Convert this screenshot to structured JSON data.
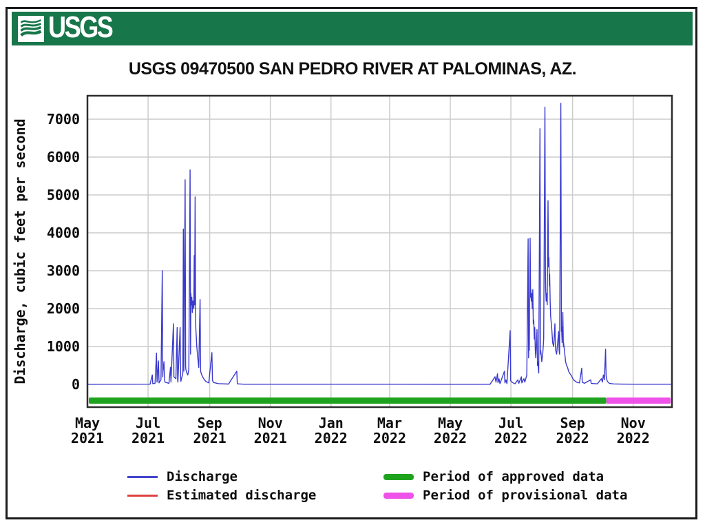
{
  "banner": {
    "logo_text": "USGS",
    "logo_icon": "usgs-wave-icon"
  },
  "title": "USGS 09470500 SAN PEDRO RIVER AT PALOMINAS, AZ.",
  "chart_data": {
    "type": "line",
    "title": "USGS 09470500 SAN PEDRO RIVER AT PALOMINAS, AZ.",
    "xlabel": "",
    "ylabel": "Discharge, cubic feet per second",
    "ylim": [
      0,
      7600
    ],
    "y_ticks": [
      0,
      1000,
      2000,
      3000,
      4000,
      5000,
      6000,
      7000
    ],
    "grid": true,
    "legend_position": "bottom",
    "x_domain": {
      "start": "2021-05-01",
      "end": "2022-12-10"
    },
    "x_ticks": [
      {
        "month": "May",
        "year": "2021",
        "date": "2021-05-01"
      },
      {
        "month": "Jul",
        "year": "2021",
        "date": "2021-07-01"
      },
      {
        "month": "Sep",
        "year": "2021",
        "date": "2021-09-01"
      },
      {
        "month": "Nov",
        "year": "2021",
        "date": "2021-11-01"
      },
      {
        "month": "Jan",
        "year": "2022",
        "date": "2022-01-01"
      },
      {
        "month": "Mar",
        "year": "2022",
        "date": "2022-03-01"
      },
      {
        "month": "May",
        "year": "2022",
        "date": "2022-05-01"
      },
      {
        "month": "Jul",
        "year": "2022",
        "date": "2022-07-01"
      },
      {
        "month": "Sep",
        "year": "2022",
        "date": "2022-09-01"
      },
      {
        "month": "Nov",
        "year": "2022",
        "date": "2022-11-01"
      }
    ],
    "series": [
      {
        "name": "Discharge",
        "color": "#3a3acd",
        "points": [
          [
            "2021-05-01",
            4
          ],
          [
            "2021-07-03",
            5
          ],
          [
            "2021-07-05T06:00",
            250
          ],
          [
            "2021-07-05T18:00",
            20
          ],
          [
            "2021-07-08",
            30
          ],
          [
            "2021-07-09T12:00",
            830
          ],
          [
            "2021-07-10",
            60
          ],
          [
            "2021-07-11T12:00",
            620
          ],
          [
            "2021-07-12",
            40
          ],
          [
            "2021-07-14",
            120
          ],
          [
            "2021-07-15T06:00",
            3000
          ],
          [
            "2021-07-15T18:00",
            200
          ],
          [
            "2021-07-16",
            350
          ],
          [
            "2021-07-17",
            600
          ],
          [
            "2021-07-17T12:00",
            150
          ],
          [
            "2021-07-18",
            60
          ],
          [
            "2021-07-22",
            30
          ],
          [
            "2021-07-23T12:00",
            450
          ],
          [
            "2021-07-24",
            60
          ],
          [
            "2021-07-26T12:00",
            1600
          ],
          [
            "2021-07-27",
            200
          ],
          [
            "2021-07-29",
            150
          ],
          [
            "2021-07-30T06:00",
            1500
          ],
          [
            "2021-07-30T18:00",
            120
          ],
          [
            "2021-07-31",
            60
          ],
          [
            "2021-08-02T06:00",
            1500
          ],
          [
            "2021-08-02T18:00",
            150
          ],
          [
            "2021-08-03",
            80
          ],
          [
            "2021-08-05T00:00",
            300
          ],
          [
            "2021-08-05T12:00",
            4100
          ],
          [
            "2021-08-06",
            350
          ],
          [
            "2021-08-07T06:00",
            5400
          ],
          [
            "2021-08-07T18:00",
            500
          ],
          [
            "2021-08-08",
            400
          ],
          [
            "2021-08-09",
            300
          ],
          [
            "2021-08-10",
            250
          ],
          [
            "2021-08-11",
            400
          ],
          [
            "2021-08-12T06:00",
            5660
          ],
          [
            "2021-08-12T18:00",
            800
          ],
          [
            "2021-08-13",
            2400
          ],
          [
            "2021-08-13T12:00",
            2100
          ],
          [
            "2021-08-14",
            2300
          ],
          [
            "2021-08-14T12:00",
            1900
          ],
          [
            "2021-08-15",
            2200
          ],
          [
            "2021-08-16T00:00",
            2000
          ],
          [
            "2021-08-16T10:00",
            3400
          ],
          [
            "2021-08-16T20:00",
            2100
          ],
          [
            "2021-08-17T08:00",
            4950
          ],
          [
            "2021-08-17T20:00",
            1900
          ],
          [
            "2021-08-18",
            1500
          ],
          [
            "2021-08-19",
            1000
          ],
          [
            "2021-08-20",
            700
          ],
          [
            "2021-08-21",
            450
          ],
          [
            "2021-08-22T08:00",
            2240
          ],
          [
            "2021-08-22T20:00",
            350
          ],
          [
            "2021-08-24",
            250
          ],
          [
            "2021-08-26",
            150
          ],
          [
            "2021-08-28",
            80
          ],
          [
            "2021-08-31",
            40
          ],
          [
            "2021-09-03T06:00",
            840
          ],
          [
            "2021-09-03T18:00",
            100
          ],
          [
            "2021-09-05",
            50
          ],
          [
            "2021-09-10",
            20
          ],
          [
            "2021-09-20",
            10
          ],
          [
            "2021-09-28T06:00",
            350
          ],
          [
            "2021-09-28T18:00",
            15
          ],
          [
            "2021-10-05",
            6
          ],
          [
            "2021-11-01",
            5
          ],
          [
            "2022-01-01",
            5
          ],
          [
            "2022-03-01",
            5
          ],
          [
            "2022-05-01",
            4
          ],
          [
            "2022-06-10",
            3
          ],
          [
            "2022-06-15",
            200
          ],
          [
            "2022-06-16",
            60
          ],
          [
            "2022-06-17T12:00",
            280
          ],
          [
            "2022-06-18",
            50
          ],
          [
            "2022-06-19",
            150
          ],
          [
            "2022-06-20",
            20
          ],
          [
            "2022-06-24T12:00",
            350
          ],
          [
            "2022-06-25",
            40
          ],
          [
            "2022-06-26",
            120
          ],
          [
            "2022-06-27",
            20
          ],
          [
            "2022-06-30T06:00",
            1420
          ],
          [
            "2022-06-30T18:00",
            100
          ],
          [
            "2022-07-02",
            60
          ],
          [
            "2022-07-05",
            15
          ],
          [
            "2022-07-08",
            120
          ],
          [
            "2022-07-09",
            30
          ],
          [
            "2022-07-11T12:00",
            200
          ],
          [
            "2022-07-12",
            40
          ],
          [
            "2022-07-14",
            150
          ],
          [
            "2022-07-15",
            60
          ],
          [
            "2022-07-17",
            250
          ],
          [
            "2022-07-18T08:00",
            3840
          ],
          [
            "2022-07-18T20:00",
            700
          ],
          [
            "2022-07-19",
            1300
          ],
          [
            "2022-07-19T12:00",
            900
          ],
          [
            "2022-07-20T08:00",
            3860
          ],
          [
            "2022-07-20T20:00",
            2300
          ],
          [
            "2022-07-21",
            2500
          ],
          [
            "2022-07-21T12:00",
            2200
          ],
          [
            "2022-07-22",
            2400
          ],
          [
            "2022-07-22T12:00",
            2000
          ],
          [
            "2022-07-23",
            2500
          ],
          [
            "2022-07-23T12:00",
            1600
          ],
          [
            "2022-07-24",
            1700
          ],
          [
            "2022-07-24T12:00",
            1200
          ],
          [
            "2022-07-25",
            1500
          ],
          [
            "2022-07-25T12:00",
            900
          ],
          [
            "2022-07-26",
            700
          ],
          [
            "2022-07-27T06:00",
            1450
          ],
          [
            "2022-07-27T18:00",
            500
          ],
          [
            "2022-07-28",
            600
          ],
          [
            "2022-07-29",
            300
          ],
          [
            "2022-07-30T06:00",
            6750
          ],
          [
            "2022-07-30T18:00",
            800
          ],
          [
            "2022-07-31",
            900
          ],
          [
            "2022-08-01",
            600
          ],
          [
            "2022-08-02",
            800
          ],
          [
            "2022-08-03",
            1200
          ],
          [
            "2022-08-04T06:00",
            7320
          ],
          [
            "2022-08-04T18:00",
            2800
          ],
          [
            "2022-08-05",
            2500
          ],
          [
            "2022-08-05T12:00",
            2200
          ],
          [
            "2022-08-06",
            2400
          ],
          [
            "2022-08-06T12:00",
            2100
          ],
          [
            "2022-08-07T08:00",
            4850
          ],
          [
            "2022-08-07T20:00",
            3100
          ],
          [
            "2022-08-08T06:00",
            3350
          ],
          [
            "2022-08-08T18:00",
            2600
          ],
          [
            "2022-08-09",
            2900
          ],
          [
            "2022-08-09T12:00",
            2200
          ],
          [
            "2022-08-10",
            1800
          ],
          [
            "2022-08-11",
            1500
          ],
          [
            "2022-08-12",
            1100
          ],
          [
            "2022-08-13",
            1000
          ],
          [
            "2022-08-14T06:00",
            1600
          ],
          [
            "2022-08-14T18:00",
            1000
          ],
          [
            "2022-08-15",
            900
          ],
          [
            "2022-08-16",
            800
          ],
          [
            "2022-08-17",
            1100
          ],
          [
            "2022-08-18T00:00",
            1400
          ],
          [
            "2022-08-18T12:00",
            900
          ],
          [
            "2022-08-19",
            800
          ],
          [
            "2022-08-20T06:00",
            7420
          ],
          [
            "2022-08-20T18:00",
            1400
          ],
          [
            "2022-08-21",
            1500
          ],
          [
            "2022-08-21T12:00",
            1100
          ],
          [
            "2022-08-22T06:00",
            1900
          ],
          [
            "2022-08-22T18:00",
            1000
          ],
          [
            "2022-08-23",
            1100
          ],
          [
            "2022-08-24",
            850
          ],
          [
            "2022-08-25",
            600
          ],
          [
            "2022-08-26",
            500
          ],
          [
            "2022-08-27",
            450
          ],
          [
            "2022-08-28",
            350
          ],
          [
            "2022-08-29",
            300
          ],
          [
            "2022-08-31",
            220
          ],
          [
            "2022-09-02",
            120
          ],
          [
            "2022-09-05",
            60
          ],
          [
            "2022-09-08",
            40
          ],
          [
            "2022-09-10T06:00",
            430
          ],
          [
            "2022-09-10T18:00",
            60
          ],
          [
            "2022-09-13",
            30
          ],
          [
            "2022-09-19T06:00",
            120
          ],
          [
            "2022-09-19T18:00",
            25
          ],
          [
            "2022-09-26",
            15
          ],
          [
            "2022-09-30",
            150
          ],
          [
            "2022-10-01",
            60
          ],
          [
            "2022-10-02",
            250
          ],
          [
            "2022-10-03",
            120
          ],
          [
            "2022-10-04T06:00",
            930
          ],
          [
            "2022-10-04T18:00",
            250
          ],
          [
            "2022-10-05",
            180
          ],
          [
            "2022-10-06",
            80
          ],
          [
            "2022-10-08",
            30
          ],
          [
            "2022-10-12",
            12
          ],
          [
            "2022-10-20",
            8
          ],
          [
            "2022-11-01",
            6
          ],
          [
            "2022-11-20",
            5
          ],
          [
            "2022-12-10",
            5
          ]
        ]
      },
      {
        "name": "Estimated discharge",
        "color": "#e04141",
        "points": []
      }
    ],
    "periods": [
      {
        "name": "Period of approved data",
        "color": "#1fa31f",
        "start": "2021-05-01",
        "end": "2022-10-05"
      },
      {
        "name": "Period of provisional data",
        "color": "#ee52e8",
        "start": "2022-10-05",
        "end": "2022-12-10"
      }
    ]
  },
  "legend": {
    "items": [
      {
        "label": "Discharge",
        "color": "#4646cc",
        "style": "line"
      },
      {
        "label": "Estimated discharge",
        "color": "#e04141",
        "style": "line"
      },
      {
        "label": "Period of approved data",
        "color": "#1fa31f",
        "style": "bar"
      },
      {
        "label": "Period of provisional data",
        "color": "#ee52e8",
        "style": "bar"
      }
    ]
  }
}
